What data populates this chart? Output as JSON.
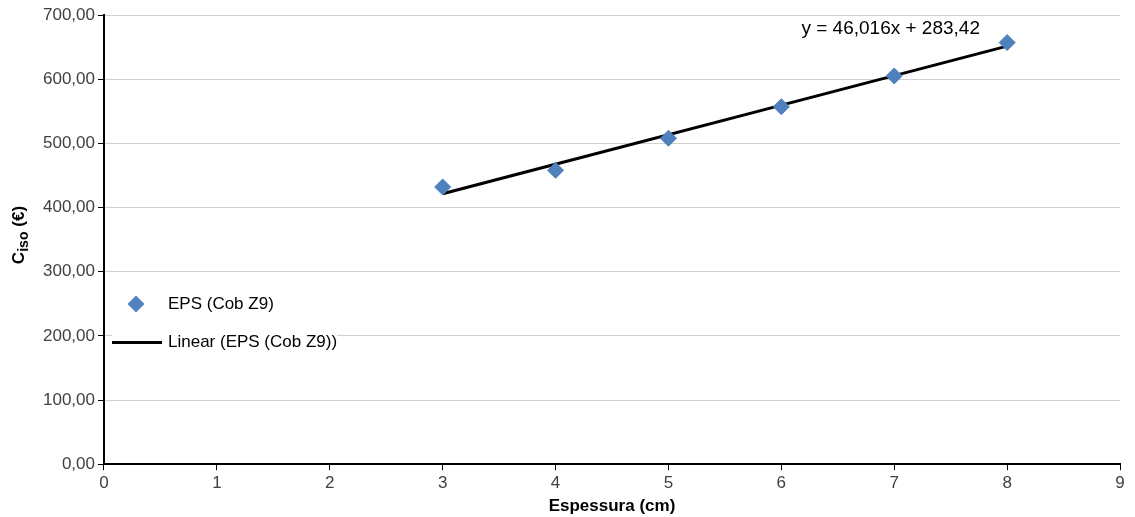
{
  "chart_data": {
    "type": "scatter",
    "xlabel": "Espessura (cm)",
    "ylabel": "C$_{iso}$ (€)",
    "xlim": [
      0,
      9
    ],
    "xticks": [
      0,
      1,
      2,
      3,
      4,
      5,
      6,
      7,
      8,
      9
    ],
    "ylim": [
      0,
      700
    ],
    "yticks": [
      {
        "value": 0,
        "label": "0,00"
      },
      {
        "value": 100,
        "label": "100,00"
      },
      {
        "value": 200,
        "label": "200,00"
      },
      {
        "value": 300,
        "label": "300,00"
      },
      {
        "value": 400,
        "label": "400,00"
      },
      {
        "value": 500,
        "label": "500,00"
      },
      {
        "value": 600,
        "label": "600,00"
      },
      {
        "value": 700,
        "label": "700,00"
      }
    ],
    "grid": "y",
    "legend": "left",
    "marker": "diamond",
    "series": [
      {
        "name": "EPS (Cob Z9)",
        "color": "#4f81bd",
        "x": [
          3,
          4,
          5,
          6,
          7,
          8
        ],
        "values": [
          432,
          458,
          508,
          557,
          605,
          657
        ]
      },
      {
        "name": "Linear (EPS (Cob Z9))",
        "type": "line",
        "marker": "none",
        "color": "#000000",
        "x": [
          3,
          8
        ],
        "values": [
          421.5,
          651.5
        ]
      }
    ],
    "annotations": [
      "y = 46,016x + 283,42"
    ]
  }
}
